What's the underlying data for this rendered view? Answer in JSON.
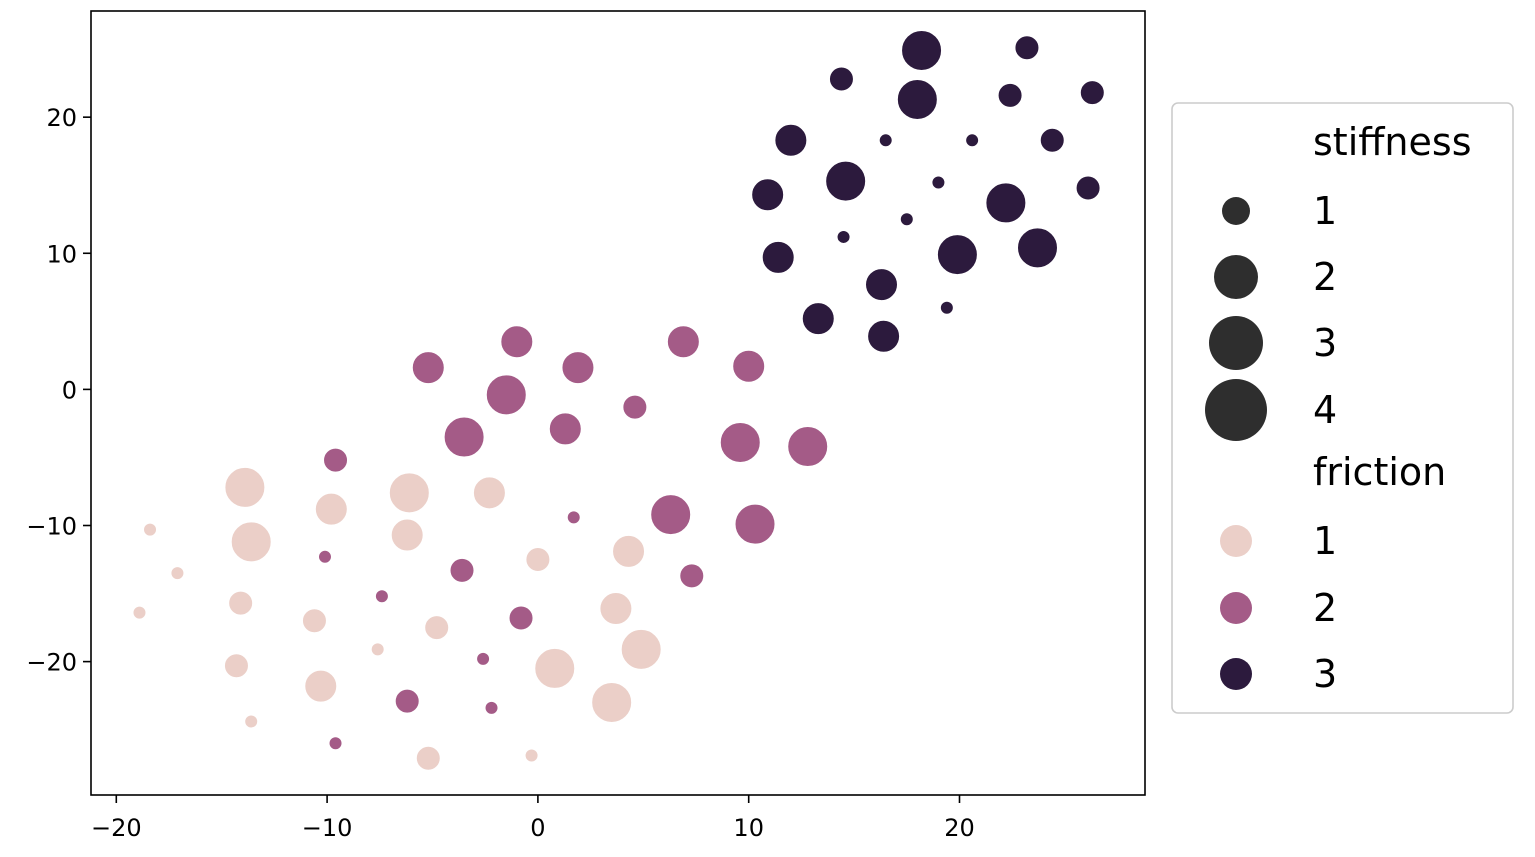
{
  "chart_data": {
    "type": "scatter",
    "title": "",
    "xlabel": "",
    "ylabel": "",
    "xlim": [
      -21.2,
      28.8
    ],
    "ylim": [
      -29.8,
      27.8
    ],
    "xticks": [
      -20,
      -10,
      0,
      10,
      20
    ],
    "yticks": [
      -20,
      -10,
      0,
      10,
      20
    ],
    "xtick_labels": [
      "−20",
      "−10",
      "0",
      "10",
      "20"
    ],
    "ytick_labels": [
      "−20",
      "−10",
      "0",
      "10",
      "20"
    ],
    "grid": false,
    "colors": {
      "friction_1": "#ebcfc8",
      "friction_2": "#a45b87",
      "friction_3": "#2c1a3d",
      "size_legend": "#2e2e2e"
    },
    "legend": {
      "placement": "outside-right",
      "size_title": "stiffness",
      "size_levels": [
        {
          "label": "1",
          "value": 1
        },
        {
          "label": "2",
          "value": 2
        },
        {
          "label": "3",
          "value": 3
        },
        {
          "label": "4",
          "value": 4
        }
      ],
      "hue_title": "friction",
      "hue_levels": [
        {
          "label": "1",
          "value": 1
        },
        {
          "label": "2",
          "value": 2
        },
        {
          "label": "3",
          "value": 3
        }
      ]
    },
    "points": [
      {
        "x": -18.4,
        "y": -10.3,
        "friction": 1,
        "stiffness": 1
      },
      {
        "x": -17.1,
        "y": -13.5,
        "friction": 1,
        "stiffness": 1
      },
      {
        "x": -18.9,
        "y": -16.4,
        "friction": 1,
        "stiffness": 1
      },
      {
        "x": -13.9,
        "y": -7.2,
        "friction": 1,
        "stiffness": 4
      },
      {
        "x": -13.6,
        "y": -11.2,
        "friction": 1,
        "stiffness": 4
      },
      {
        "x": -14.1,
        "y": -15.7,
        "friction": 1,
        "stiffness": 2
      },
      {
        "x": -14.3,
        "y": -20.3,
        "friction": 1,
        "stiffness": 2
      },
      {
        "x": -13.6,
        "y": -24.4,
        "friction": 1,
        "stiffness": 1
      },
      {
        "x": -10.6,
        "y": -17.0,
        "friction": 1,
        "stiffness": 2
      },
      {
        "x": -10.3,
        "y": -21.8,
        "friction": 1,
        "stiffness": 3
      },
      {
        "x": -9.8,
        "y": -8.8,
        "friction": 1,
        "stiffness": 3
      },
      {
        "x": -6.2,
        "y": -10.7,
        "friction": 1,
        "stiffness": 3
      },
      {
        "x": -6.1,
        "y": -7.6,
        "friction": 1,
        "stiffness": 4
      },
      {
        "x": -7.6,
        "y": -19.1,
        "friction": 1,
        "stiffness": 1
      },
      {
        "x": -4.8,
        "y": -17.5,
        "friction": 1,
        "stiffness": 2
      },
      {
        "x": -5.2,
        "y": -27.1,
        "friction": 1,
        "stiffness": 2
      },
      {
        "x": -2.3,
        "y": -7.6,
        "friction": 1,
        "stiffness": 3
      },
      {
        "x": 0.0,
        "y": -12.5,
        "friction": 1,
        "stiffness": 2
      },
      {
        "x": 0.8,
        "y": -20.5,
        "friction": 1,
        "stiffness": 4
      },
      {
        "x": -0.3,
        "y": -26.9,
        "friction": 1,
        "stiffness": 1
      },
      {
        "x": 4.3,
        "y": -11.9,
        "friction": 1,
        "stiffness": 3
      },
      {
        "x": 3.7,
        "y": -16.1,
        "friction": 1,
        "stiffness": 3
      },
      {
        "x": 4.9,
        "y": -19.1,
        "friction": 1,
        "stiffness": 4
      },
      {
        "x": 3.5,
        "y": -23.0,
        "friction": 1,
        "stiffness": 4
      },
      {
        "x": -5.2,
        "y": 1.6,
        "friction": 2,
        "stiffness": 3
      },
      {
        "x": -1.0,
        "y": 3.5,
        "friction": 2,
        "stiffness": 3
      },
      {
        "x": 1.9,
        "y": 1.6,
        "friction": 2,
        "stiffness": 3
      },
      {
        "x": -1.5,
        "y": -0.4,
        "friction": 2,
        "stiffness": 4
      },
      {
        "x": -3.5,
        "y": -3.5,
        "friction": 2,
        "stiffness": 4
      },
      {
        "x": 1.3,
        "y": -2.9,
        "friction": 2,
        "stiffness": 3
      },
      {
        "x": 4.6,
        "y": -1.3,
        "friction": 2,
        "stiffness": 2
      },
      {
        "x": 6.9,
        "y": 3.5,
        "friction": 2,
        "stiffness": 3
      },
      {
        "x": 10.0,
        "y": 1.7,
        "friction": 2,
        "stiffness": 3
      },
      {
        "x": 9.6,
        "y": -3.9,
        "friction": 2,
        "stiffness": 4
      },
      {
        "x": 12.8,
        "y": -4.2,
        "friction": 2,
        "stiffness": 4
      },
      {
        "x": -9.6,
        "y": -5.2,
        "friction": 2,
        "stiffness": 2
      },
      {
        "x": -10.1,
        "y": -12.3,
        "friction": 2,
        "stiffness": 1
      },
      {
        "x": -7.4,
        "y": -15.2,
        "friction": 2,
        "stiffness": 1
      },
      {
        "x": -3.6,
        "y": -13.3,
        "friction": 2,
        "stiffness": 2
      },
      {
        "x": 1.7,
        "y": -9.4,
        "friction": 2,
        "stiffness": 1
      },
      {
        "x": 6.3,
        "y": -9.2,
        "friction": 2,
        "stiffness": 4
      },
      {
        "x": 10.3,
        "y": -9.9,
        "friction": 2,
        "stiffness": 4
      },
      {
        "x": 7.3,
        "y": -13.7,
        "friction": 2,
        "stiffness": 2
      },
      {
        "x": -0.8,
        "y": -16.8,
        "friction": 2,
        "stiffness": 2
      },
      {
        "x": -2.6,
        "y": -19.8,
        "friction": 2,
        "stiffness": 1
      },
      {
        "x": -6.2,
        "y": -22.9,
        "friction": 2,
        "stiffness": 2
      },
      {
        "x": -2.2,
        "y": -23.4,
        "friction": 2,
        "stiffness": 1
      },
      {
        "x": -9.6,
        "y": -26.0,
        "friction": 2,
        "stiffness": 1
      },
      {
        "x": 18.2,
        "y": 24.9,
        "friction": 3,
        "stiffness": 4
      },
      {
        "x": 23.2,
        "y": 25.1,
        "friction": 3,
        "stiffness": 2
      },
      {
        "x": 14.4,
        "y": 22.8,
        "friction": 3,
        "stiffness": 2
      },
      {
        "x": 18.0,
        "y": 21.3,
        "friction": 3,
        "stiffness": 4
      },
      {
        "x": 22.4,
        "y": 21.6,
        "friction": 3,
        "stiffness": 2
      },
      {
        "x": 26.3,
        "y": 21.8,
        "friction": 3,
        "stiffness": 2
      },
      {
        "x": 12.0,
        "y": 18.3,
        "friction": 3,
        "stiffness": 3
      },
      {
        "x": 16.5,
        "y": 18.3,
        "friction": 3,
        "stiffness": 1
      },
      {
        "x": 20.6,
        "y": 18.3,
        "friction": 3,
        "stiffness": 1
      },
      {
        "x": 24.4,
        "y": 18.3,
        "friction": 3,
        "stiffness": 2
      },
      {
        "x": 10.9,
        "y": 14.3,
        "friction": 3,
        "stiffness": 3
      },
      {
        "x": 14.6,
        "y": 15.3,
        "friction": 3,
        "stiffness": 4
      },
      {
        "x": 19.0,
        "y": 15.2,
        "friction": 3,
        "stiffness": 1
      },
      {
        "x": 22.2,
        "y": 13.7,
        "friction": 3,
        "stiffness": 4
      },
      {
        "x": 26.1,
        "y": 14.8,
        "friction": 3,
        "stiffness": 2
      },
      {
        "x": 14.5,
        "y": 11.2,
        "friction": 3,
        "stiffness": 1
      },
      {
        "x": 17.5,
        "y": 12.5,
        "friction": 3,
        "stiffness": 1
      },
      {
        "x": 11.4,
        "y": 9.7,
        "friction": 3,
        "stiffness": 3
      },
      {
        "x": 19.9,
        "y": 9.9,
        "friction": 3,
        "stiffness": 4
      },
      {
        "x": 23.7,
        "y": 10.4,
        "friction": 3,
        "stiffness": 4
      },
      {
        "x": 16.3,
        "y": 7.7,
        "friction": 3,
        "stiffness": 3
      },
      {
        "x": 13.3,
        "y": 5.2,
        "friction": 3,
        "stiffness": 3
      },
      {
        "x": 16.4,
        "y": 3.9,
        "friction": 3,
        "stiffness": 3
      },
      {
        "x": 19.4,
        "y": 6.0,
        "friction": 3,
        "stiffness": 1
      }
    ]
  }
}
